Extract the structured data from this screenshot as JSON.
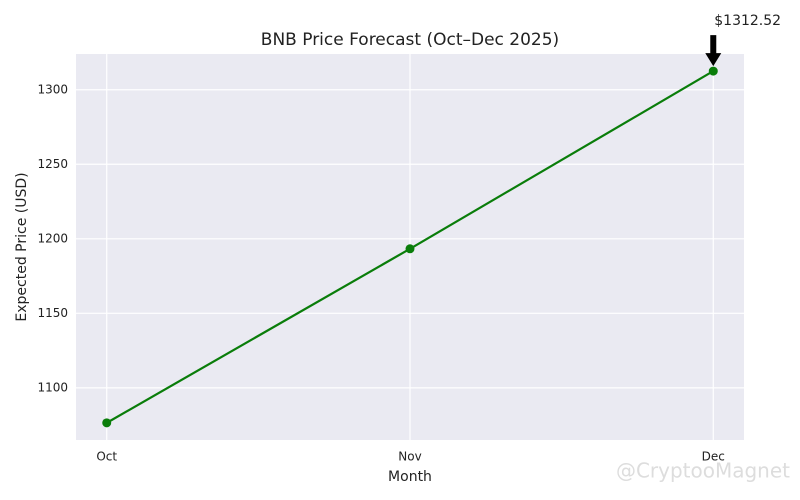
{
  "chart_data": {
    "type": "line",
    "title": "BNB Price Forecast (Oct–Dec 2025)",
    "x_label": "Month",
    "y_label": "Expected Price (USD)",
    "categories": [
      "Oct",
      "Nov",
      "Dec"
    ],
    "series": [
      {
        "name": "Expected Price",
        "color": "#0a7d0a",
        "values": [
          1076.5,
          1193.3,
          1312.52
        ]
      }
    ],
    "ylim": [
      1065,
      1324
    ],
    "yticks": [
      1100,
      1150,
      1200,
      1250,
      1300
    ],
    "grid": true,
    "annotation": {
      "text": "$1312.52",
      "category": 2,
      "value": 1312.52
    },
    "watermark": "@CryptooMagnet"
  }
}
